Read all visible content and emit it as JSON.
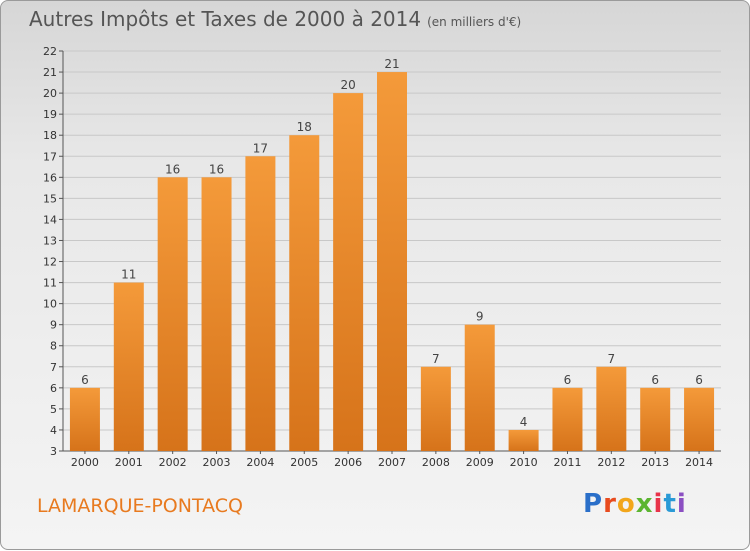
{
  "title": "Autres Impôts et Taxes de 2000 à 2014",
  "title_unit": "(en milliers d'€)",
  "place_name": "LAMARQUE-PONTACQ",
  "logo": {
    "text": "Proxiti",
    "letters": [
      "P",
      "r",
      "o",
      "x",
      "i",
      "t",
      "i"
    ],
    "colors": [
      "#2a6fc9",
      "#e84b1e",
      "#f2a61b",
      "#5cb531",
      "#e8334a",
      "#2a9ad6",
      "#8b4fc2"
    ]
  },
  "chart_data": {
    "type": "bar",
    "categories": [
      "2000",
      "2001",
      "2002",
      "2003",
      "2004",
      "2005",
      "2006",
      "2007",
      "2008",
      "2009",
      "2010",
      "2011",
      "2012",
      "2013",
      "2014"
    ],
    "values": [
      6,
      11,
      16,
      16,
      17,
      18,
      20,
      21,
      7,
      9,
      4,
      6,
      7,
      6,
      6
    ],
    "title": "Autres Impôts et Taxes de 2000 à 2014",
    "xlabel": "",
    "ylabel": "",
    "ylim": [
      3,
      22
    ],
    "yticks": [
      3,
      4,
      5,
      6,
      7,
      8,
      9,
      10,
      11,
      12,
      13,
      14,
      15,
      16,
      17,
      18,
      19,
      20,
      21,
      22
    ],
    "grid": true,
    "bar_color": "#f49a3a",
    "bar_color_dark": "#d6731a"
  }
}
